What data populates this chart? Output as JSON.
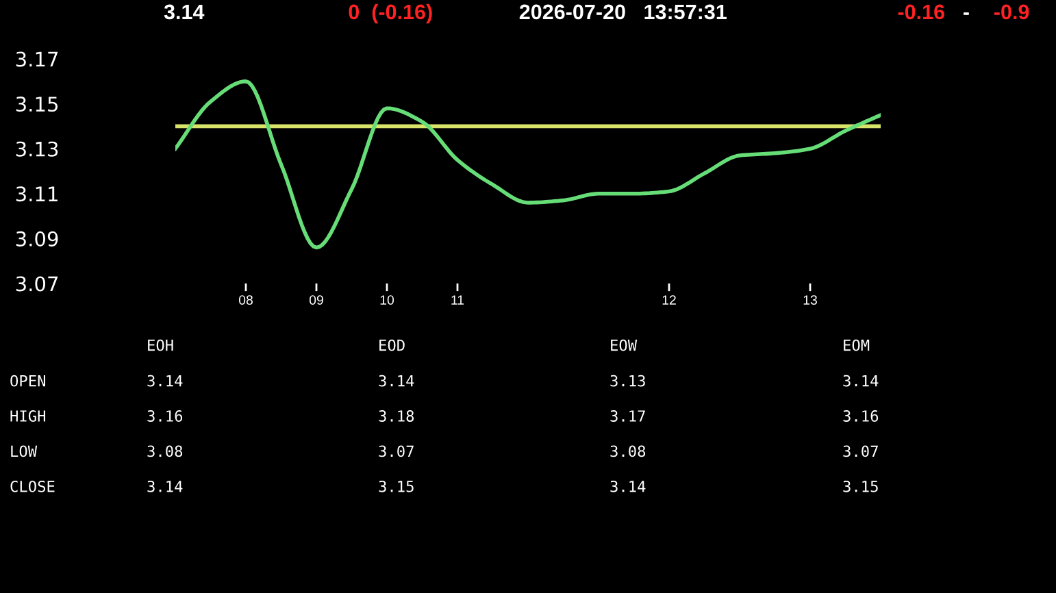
{
  "chart_data": [
    {
      "type": "line",
      "annotations": [
        "3.14",
        "0  (-0.16)",
        "2026-07-20   13:57:31",
        "-0.16",
        "-",
        "-0.9"
      ],
      "categories": [
        null,
        null,
        "08",
        null,
        "09",
        null,
        "10",
        null,
        "11",
        null,
        null,
        null,
        null,
        null,
        "12",
        null,
        null,
        null,
        "13",
        null,
        null
      ],
      "series": [
        {
          "color": "#66dd77",
          "values": [
            3.13,
            3.151,
            3.16,
            3.123,
            3.086,
            3.112,
            3.148,
            3.142,
            3.125,
            3.114,
            3.106,
            3.107,
            3.11,
            3.11,
            3.111,
            3.119,
            3.127,
            3.128,
            3.13,
            3.138,
            3.145
          ]
        }
      ],
      "ylim": [
        3.07,
        3.17
      ],
      "yticks": [
        3.07,
        3.09,
        3.11,
        3.13,
        3.15,
        3.17
      ],
      "ref_lines": [
        {
          "axis": "y",
          "value": 3.14,
          "color": "#d8e36a"
        }
      ],
      "legend": false,
      "marker": "none",
      "line_style": "solid"
    },
    {
      "type": "other",
      "categories": [
        "EOH",
        "EOD",
        "EOW",
        "EOM"
      ],
      "y_categories": [
        "OPEN",
        "HIGH",
        "LOW",
        "CLOSE"
      ],
      "cell_labels": [
        [
          "3.14",
          "3.14",
          "3.13",
          "3.14"
        ],
        [
          "3.16",
          "3.18",
          "3.17",
          "3.16"
        ],
        [
          "3.08",
          "3.07",
          "3.08",
          "3.07"
        ],
        [
          "3.14",
          "3.15",
          "3.14",
          "3.15"
        ]
      ]
    }
  ]
}
